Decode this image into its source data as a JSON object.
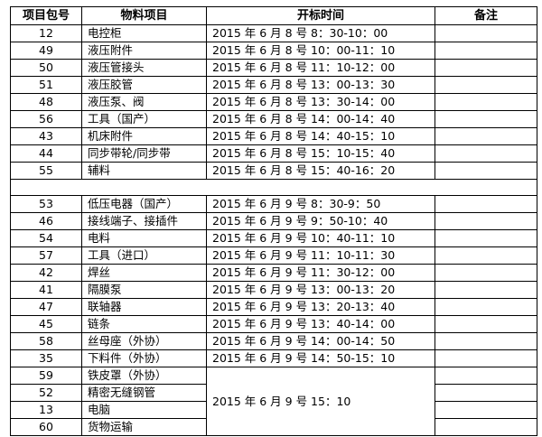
{
  "headers": [
    "项目包号",
    "物料项目",
    "开标时间",
    "备注"
  ],
  "block1": [
    {
      "id": "12",
      "item": "电控柜",
      "time": "2015 年 6 月 8 号 8：30-10：00",
      "note": ""
    },
    {
      "id": "49",
      "item": "液压附件",
      "time": "2015 年 6 月 8 号 10：00-11：10",
      "note": ""
    },
    {
      "id": "50",
      "item": "液压管接头",
      "time": "2015 年 6 月 8 号 11：10-12：00",
      "note": ""
    },
    {
      "id": "51",
      "item": "液压胶管",
      "time": "2015 年 6 月 8 号 13：00-13：30",
      "note": ""
    },
    {
      "id": "48",
      "item": "液压泵、阀",
      "time": "2015 年 6 月 8 号 13：30-14：00",
      "note": ""
    },
    {
      "id": "56",
      "item": "工具（国产）",
      "time": "2015 年 6 月 8 号 14：00-14：40",
      "note": ""
    },
    {
      "id": "43",
      "item": "机床附件",
      "time": "2015 年 6 月 8 号 14：40-15：10",
      "note": ""
    },
    {
      "id": "44",
      "item": "同步带轮/同步带",
      "time": "2015 年 6 月 8 号 15：10-15：40",
      "note": ""
    },
    {
      "id": "55",
      "item": "辅料",
      "time": "2015 年 6 月 8 号 15：40-16：20",
      "note": ""
    }
  ],
  "block2": [
    {
      "id": "53",
      "item": "低压电器（国产）",
      "time": "2015 年 6 月 9 号 8：30-9：50",
      "note": ""
    },
    {
      "id": "46",
      "item": "接线端子、接插件",
      "time": "2015 年 6 月 9 号 9：50-10：40",
      "note": ""
    },
    {
      "id": "54",
      "item": "电料",
      "time": "2015 年 6 月 9 号 10：40-11：10",
      "note": ""
    },
    {
      "id": "57",
      "item": "工具（进口）",
      "time": "2015 年 6 月 9 号 11：10-11：30",
      "note": ""
    },
    {
      "id": "42",
      "item": "焊丝",
      "time": "2015 年 6 月 9 号 11：30-12：00",
      "note": ""
    },
    {
      "id": "41",
      "item": "隔膜泵",
      "time": "2015 年 6 月 9 号 13：00-13：20",
      "note": ""
    },
    {
      "id": "47",
      "item": "联轴器",
      "time": "2015 年 6 月 9 号 13：20-13：40",
      "note": ""
    },
    {
      "id": "45",
      "item": "链条",
      "time": "2015 年 6 月 9 号 13：40-14：00",
      "note": ""
    },
    {
      "id": "58",
      "item": "丝母座（外协）",
      "time": "2015 年 6 月 9 号 14：00-14：50",
      "note": ""
    },
    {
      "id": "35",
      "item": "下料件（外协）",
      "time": "2015 年 6 月 9 号 14：50-15：10",
      "note": ""
    }
  ],
  "block3": {
    "time": "2015 年 6 月 9 号 15：10",
    "rows": [
      {
        "id": "59",
        "item": "铁皮罩（外协）",
        "note": ""
      },
      {
        "id": "52",
        "item": "精密无缝钢管",
        "note": ""
      },
      {
        "id": "13",
        "item": "电脑",
        "note": ""
      },
      {
        "id": "60",
        "item": "货物运输",
        "note": ""
      }
    ]
  }
}
